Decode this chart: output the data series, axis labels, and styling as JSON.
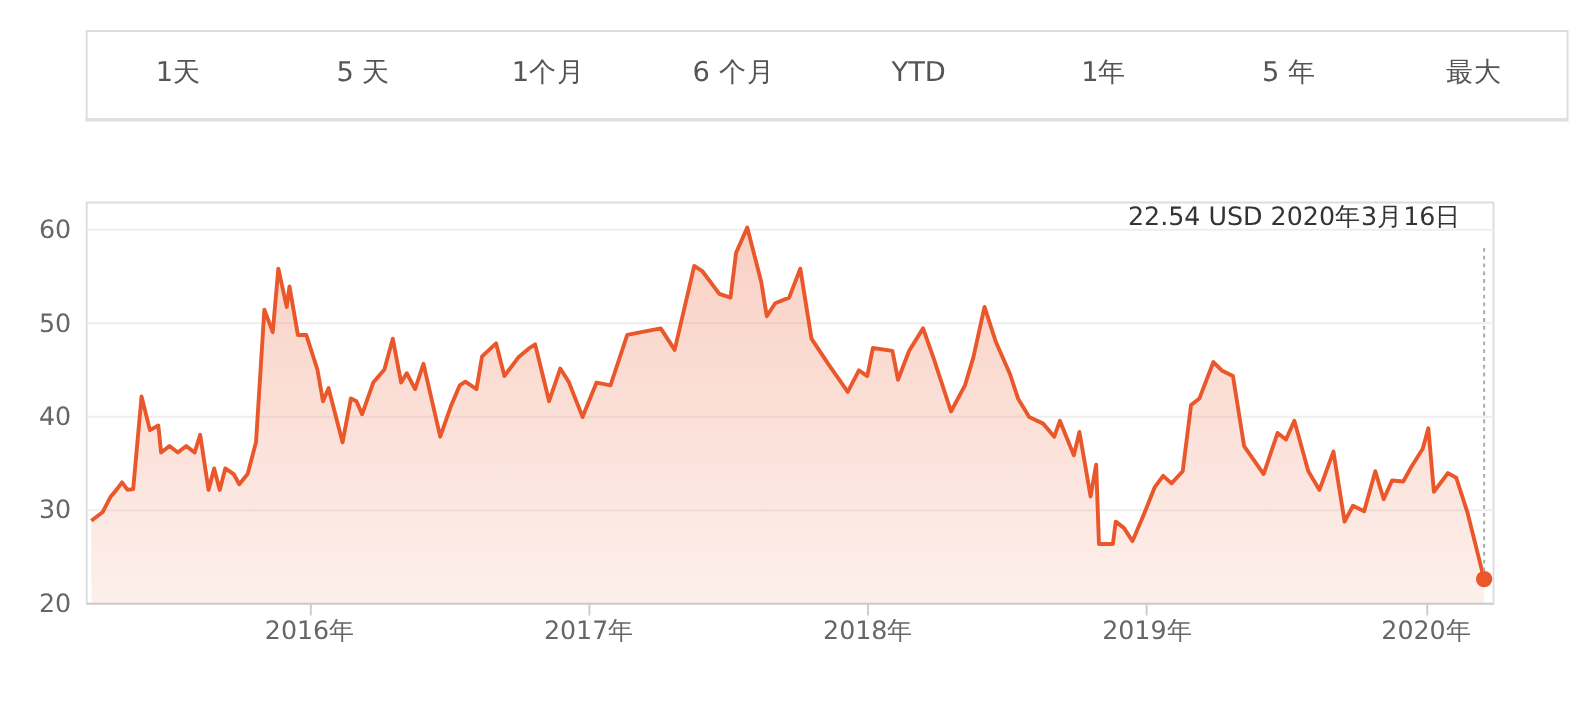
{
  "chart_data": {
    "type": "area",
    "xlim": [
      2015.2,
      2020.24
    ],
    "ylim": [
      20,
      63
    ],
    "yticks": [
      20,
      30,
      40,
      50,
      60
    ],
    "xticks": [
      {
        "value": 2016,
        "label": "2016年"
      },
      {
        "value": 2017,
        "label": "2017年"
      },
      {
        "value": 2018,
        "label": "2018年"
      },
      {
        "value": 2019,
        "label": "2019年"
      },
      {
        "value": 2020,
        "label": "2020年"
      }
    ],
    "grid": "y",
    "annotations": [
      {
        "text": "22.54 USD  2020年3月16日",
        "x": 2020.21,
        "y": 22.54
      },
      "1天",
      "5 天",
      "1个月",
      "6 个月",
      "YTD",
      "1年",
      "5 年",
      "最大"
    ],
    "series": [
      {
        "color": "#e9572b",
        "x": [
          2015.22,
          2015.26,
          2015.29,
          2015.31,
          2015.33,
          2015.35,
          2015.37,
          2015.4,
          2015.43,
          2015.46,
          2015.47,
          2015.5,
          2015.53,
          2015.56,
          2015.59,
          2015.61,
          2015.64,
          2015.66,
          2015.68,
          2015.7,
          2015.73,
          2015.75,
          2015.78,
          2015.81,
          2015.84,
          2015.87,
          2015.89,
          2015.92,
          2015.93,
          2015.96,
          2015.99,
          2016.03,
          2016.05,
          2016.07,
          2016.12,
          2016.15,
          2016.17,
          2016.19,
          2016.23,
          2016.27,
          2016.3,
          2016.33,
          2016.35,
          2016.38,
          2016.41,
          2016.47,
          2016.51,
          2016.54,
          2016.56,
          2016.6,
          2016.62,
          2016.67,
          2016.7,
          2016.75,
          2016.79,
          2016.81,
          2016.86,
          2016.9,
          2016.93,
          2016.98,
          2017.03,
          2017.08,
          2017.14,
          2017.19,
          2017.26,
          2017.31,
          2017.38,
          2017.41,
          2017.47,
          2017.51,
          2017.53,
          2017.57,
          2017.62,
          2017.64,
          2017.67,
          2017.72,
          2017.76,
          2017.8,
          2017.86,
          2017.93,
          2017.97,
          2018.0,
          2018.02,
          2018.09,
          2018.11,
          2018.15,
          2018.2,
          2018.24,
          2018.3,
          2018.35,
          2018.38,
          2018.42,
          2018.46,
          2018.51,
          2018.54,
          2018.58,
          2018.63,
          2018.67,
          2018.69,
          2018.74,
          2018.76,
          2018.8,
          2018.82,
          2018.83,
          2018.88,
          2018.89,
          2018.92,
          2018.95,
          2018.99,
          2019.03,
          2019.06,
          2019.09,
          2019.13,
          2019.16,
          2019.19,
          2019.24,
          2019.27,
          2019.31,
          2019.35,
          2019.42,
          2019.47,
          2019.5,
          2019.53,
          2019.58,
          2019.62,
          2019.67,
          2019.71,
          2019.74,
          2019.78,
          2019.82,
          2019.85,
          2019.88,
          2019.92,
          2019.95,
          2019.99,
          2020.01,
          2020.03,
          2020.08,
          2020.11,
          2020.15,
          2020.21
        ],
        "values": [
          28.8,
          29.7,
          31.4,
          32.1,
          32.9,
          32.1,
          32.2,
          42.1,
          38.5,
          39.0,
          36.1,
          36.8,
          36.1,
          36.8,
          36.1,
          38.0,
          32.1,
          34.4,
          32.1,
          34.4,
          33.8,
          32.7,
          33.8,
          37.2,
          51.4,
          49.0,
          55.8,
          51.7,
          53.9,
          48.7,
          48.7,
          45.0,
          41.6,
          43.0,
          37.2,
          41.9,
          41.6,
          40.2,
          43.6,
          45.0,
          48.3,
          43.6,
          44.6,
          42.9,
          45.6,
          37.8,
          41.2,
          43.3,
          43.7,
          42.9,
          46.4,
          47.8,
          44.3,
          46.3,
          47.3,
          47.7,
          41.6,
          45.1,
          43.7,
          39.9,
          43.6,
          43.3,
          48.7,
          49.0,
          49.4,
          47.1,
          56.1,
          55.5,
          53.1,
          52.7,
          57.5,
          60.2,
          54.4,
          50.7,
          52.1,
          52.7,
          55.8,
          48.3,
          45.6,
          42.6,
          44.9,
          44.3,
          47.3,
          47.0,
          43.9,
          47.0,
          49.4,
          46.0,
          40.5,
          43.3,
          46.3,
          51.7,
          48.0,
          44.6,
          41.9,
          39.9,
          39.2,
          37.8,
          39.5,
          35.8,
          38.3,
          31.4,
          34.8,
          26.3,
          26.3,
          28.7,
          28.0,
          26.6,
          29.4,
          32.4,
          33.6,
          32.8,
          34.1,
          41.2,
          41.9,
          45.8,
          44.9,
          44.3,
          36.8,
          33.8,
          38.2,
          37.5,
          39.5,
          34.1,
          32.1,
          36.2,
          28.7,
          30.4,
          29.8,
          34.1,
          31.1,
          33.1,
          33.0,
          34.6,
          36.5,
          38.7,
          31.9,
          33.9,
          33.4,
          29.7,
          22.54
        ]
      }
    ]
  }
}
